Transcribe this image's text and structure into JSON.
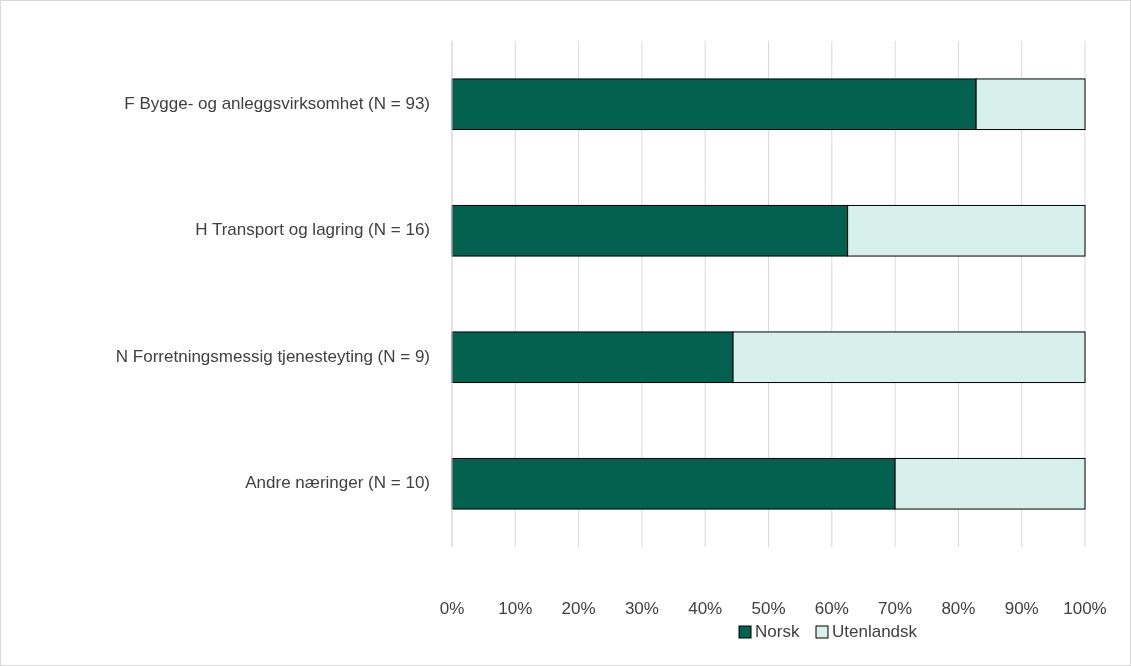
{
  "chart_data": {
    "type": "bar",
    "orientation": "horizontal",
    "stacked": true,
    "categories": [
      "F Bygge- og anleggsvirksomhet (N = 93)",
      "H Transport og lagring (N = 16)",
      "N Forretningsmessig tjenesteyting (N = 9)",
      "Andre næringer (N = 10)"
    ],
    "series": [
      {
        "name": "Norsk",
        "color": "#03614f",
        "values": [
          82.8,
          62.5,
          44.4,
          70
        ]
      },
      {
        "name": "Utenlandsk",
        "color": "#d7f0ec",
        "values": [
          17.2,
          37.5,
          55.6,
          30
        ]
      }
    ],
    "xlim": [
      0,
      100
    ],
    "xticks": [
      {
        "value": 0,
        "label": "0%"
      },
      {
        "value": 10,
        "label": "10%"
      },
      {
        "value": 20,
        "label": "20%"
      },
      {
        "value": 30,
        "label": "30%"
      },
      {
        "value": 40,
        "label": "40%"
      },
      {
        "value": 50,
        "label": "50%"
      },
      {
        "value": 60,
        "label": "60%"
      },
      {
        "value": 70,
        "label": "70%"
      },
      {
        "value": 80,
        "label": "80%"
      },
      {
        "value": 90,
        "label": "90%"
      },
      {
        "value": 100,
        "label": "100%"
      }
    ],
    "grid": "x",
    "legend": "bottom"
  }
}
